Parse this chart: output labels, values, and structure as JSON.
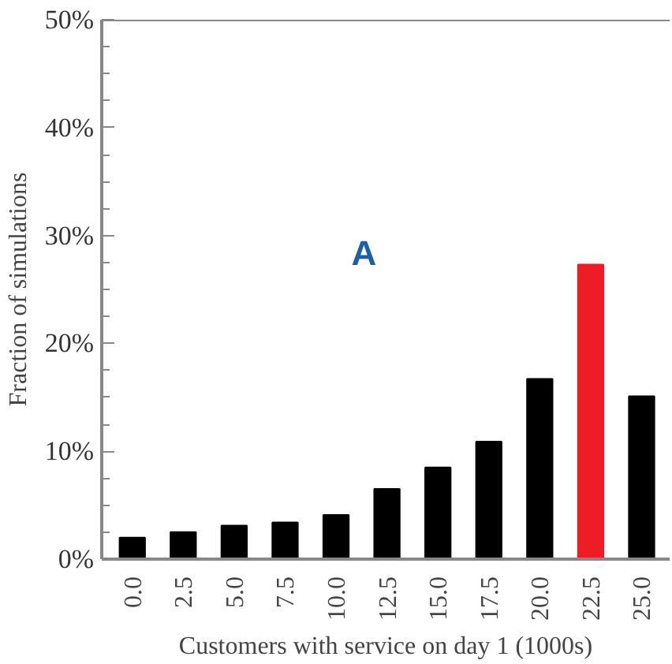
{
  "chart_data": {
    "type": "bar",
    "xlabel": "Customers with service on day 1 (1000s)",
    "ylabel": "Fraction of simulations",
    "annotations": [
      "A"
    ],
    "categories": [
      "0.0",
      "2.5",
      "5.0",
      "7.5",
      "10.0",
      "12.5",
      "15.0",
      "17.5",
      "20.0",
      "22.5",
      "25.0"
    ],
    "values": [
      2.0,
      2.5,
      3.1,
      3.4,
      4.1,
      6.5,
      8.5,
      10.9,
      16.7,
      27.3,
      15.1
    ],
    "colors": [
      "#000000",
      "#000000",
      "#000000",
      "#000000",
      "#000000",
      "#000000",
      "#000000",
      "#000000",
      "#000000",
      "#ee1c25",
      "#000000"
    ],
    "ylim": [
      0,
      50
    ],
    "yticks": [
      {
        "value": 0,
        "label": "0%"
      },
      {
        "value": 2.5,
        "label": null
      },
      {
        "value": 5,
        "label": null
      },
      {
        "value": 7.5,
        "label": null
      },
      {
        "value": 10,
        "label": "10%"
      },
      {
        "value": 12.5,
        "label": null
      },
      {
        "value": 15,
        "label": null
      },
      {
        "value": 17.5,
        "label": null
      },
      {
        "value": 20,
        "label": "20%"
      },
      {
        "value": 22.5,
        "label": null
      },
      {
        "value": 25,
        "label": null
      },
      {
        "value": 27.5,
        "label": null
      },
      {
        "value": 30,
        "label": "30%"
      },
      {
        "value": 32.5,
        "label": null
      },
      {
        "value": 35,
        "label": null
      },
      {
        "value": 37.5,
        "label": null
      },
      {
        "value": 40,
        "label": "40%"
      },
      {
        "value": 42.5,
        "label": null
      },
      {
        "value": 45,
        "label": null
      },
      {
        "value": 47.5,
        "label": null
      },
      {
        "value": 50,
        "label": "50%"
      }
    ],
    "grid": false
  }
}
